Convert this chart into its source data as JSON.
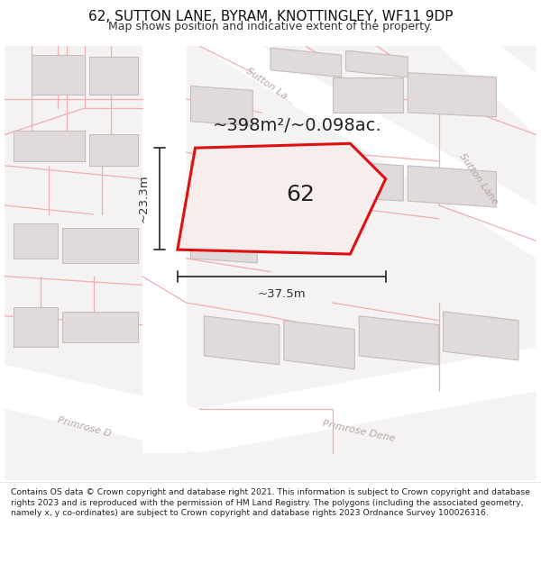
{
  "title": "62, SUTTON LANE, BYRAM, KNOTTINGLEY, WF11 9DP",
  "subtitle": "Map shows position and indicative extent of the property.",
  "area_text": "~398m²/~0.098ac.",
  "label_62": "62",
  "dim_width": "~37.5m",
  "dim_height": "~23.3m",
  "map_bg": "#f5f2f2",
  "road_fill": "#ffffff",
  "building_fill": "#e0dada",
  "building_edge": "#c8bcbc",
  "prop_fill": "#f8eded",
  "prop_edge": "#dd1111",
  "boundary_color": "#f0b0b0",
  "road_label_color": "#b8a8a8",
  "dim_color": "#333333",
  "area_color": "#222222",
  "footer_text": "Contains OS data © Crown copyright and database right 2021. This information is subject to Crown copyright and database rights 2023 and is reproduced with the permission of HM Land Registry. The polygons (including the associated geometry, namely x, y co-ordinates) are subject to Crown copyright and database rights 2023 Ordnance Survey 100026316.",
  "title_fontsize": 11,
  "subtitle_fontsize": 9,
  "area_fontsize": 14,
  "label_fontsize": 18,
  "road_label_fontsize": 8,
  "dim_fontsize": 9.5,
  "footer_fontsize": 6.7
}
